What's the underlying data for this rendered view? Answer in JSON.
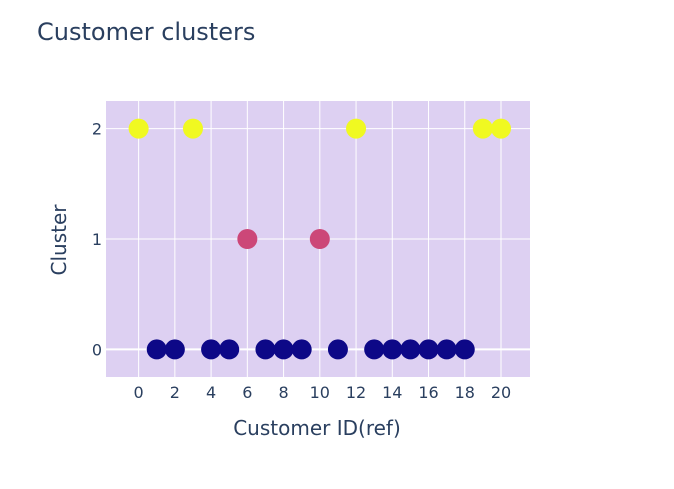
{
  "chart_data": {
    "type": "scatter",
    "title": "Customer clusters",
    "xlabel": "Customer ID(ref)",
    "ylabel": "Cluster",
    "xlim": [
      -1.8,
      21.6
    ],
    "ylim": [
      -0.25,
      2.25
    ],
    "x_ticks": [
      "0",
      "2",
      "4",
      "6",
      "8",
      "10",
      "12",
      "14",
      "16",
      "18",
      "20"
    ],
    "y_ticks": [
      "0",
      "1",
      "2"
    ],
    "grid": true,
    "legend": "none",
    "x": [
      0,
      1,
      2,
      3,
      4,
      5,
      6,
      7,
      8,
      9,
      10,
      11,
      12,
      13,
      14,
      15,
      16,
      17,
      18,
      19,
      20
    ],
    "y": [
      2,
      0,
      0,
      2,
      0,
      0,
      1,
      0,
      0,
      0,
      1,
      0,
      2,
      0,
      0,
      0,
      0,
      0,
      0,
      2,
      2
    ],
    "cluster_colors": {
      "0": "#0d0887",
      "1": "#cc4778",
      "2": "#f0f921"
    },
    "plot_background": "#ddd0f2"
  }
}
